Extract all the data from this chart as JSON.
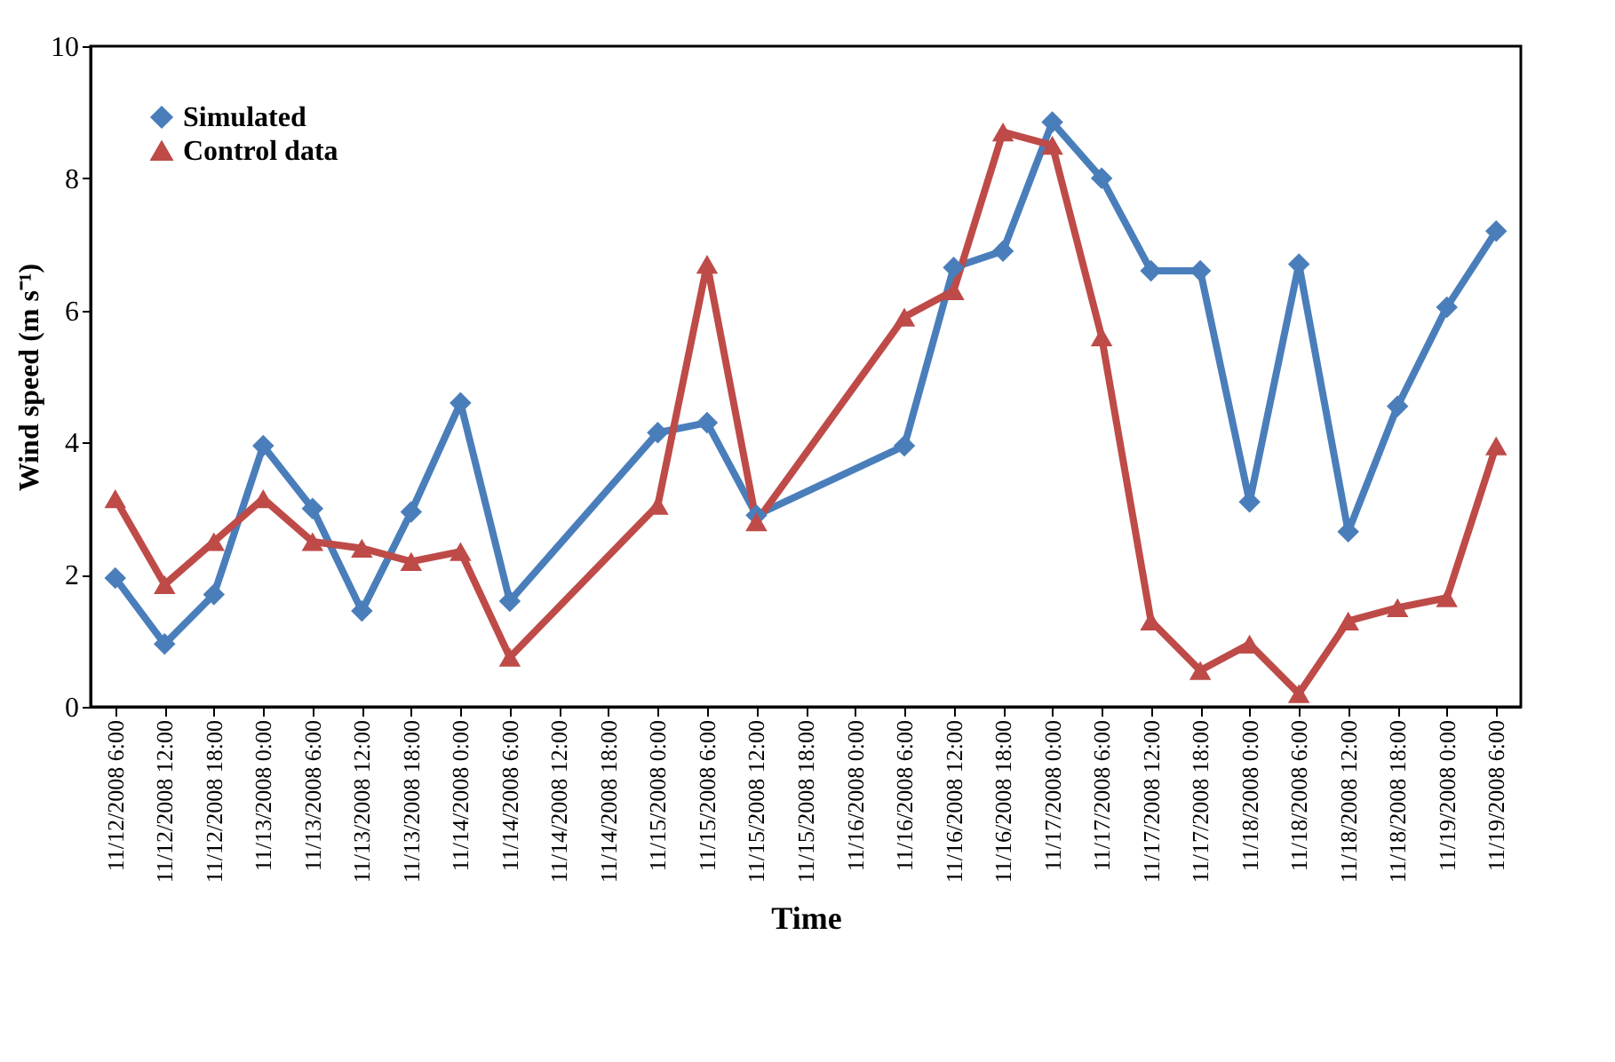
{
  "chart_data": {
    "type": "line",
    "xlabel": "Time",
    "ylabel": "Wind speed (m s⁻¹)",
    "categories": [
      "11/12/2008 6:00",
      "11/12/2008 12:00",
      "11/12/2008 18:00",
      "11/13/2008 0:00",
      "11/13/2008 6:00",
      "11/13/2008 12:00",
      "11/13/2008 18:00",
      "11/14/2008 0:00",
      "11/14/2008 6:00",
      "11/14/2008 12:00",
      "11/14/2008 18:00",
      "11/15/2008 0:00",
      "11/15/2008 6:00",
      "11/15/2008 12:00",
      "11/15/2008 18:00",
      "11/16/2008 0:00",
      "11/16/2008 6:00",
      "11/16/2008 12:00",
      "11/16/2008 18:00",
      "11/17/2008 0:00",
      "11/17/2008 6:00",
      "11/17/2008 12:00",
      "11/17/2008 18:00",
      "11/18/2008 0:00",
      "11/18/2008 6:00",
      "11/18/2008 12:00",
      "11/18/2008 18:00",
      "11/19/2008 0:00",
      "11/19/2008 6:00"
    ],
    "series": [
      {
        "name": "Simulated",
        "color": "#4a7ebb",
        "marker": "diamond",
        "values": [
          1.95,
          0.95,
          1.7,
          3.95,
          3.0,
          1.45,
          2.95,
          4.6,
          1.6,
          null,
          null,
          4.15,
          4.3,
          2.9,
          null,
          null,
          3.95,
          6.65,
          6.9,
          8.85,
          8.0,
          6.6,
          6.6,
          3.1,
          6.7,
          2.65,
          4.55,
          6.05,
          7.2
        ]
      },
      {
        "name": "Control data",
        "color": "#be4b48",
        "marker": "triangle",
        "values": [
          3.15,
          1.85,
          2.5,
          3.15,
          2.5,
          2.4,
          2.2,
          2.35,
          0.75,
          null,
          null,
          3.05,
          6.7,
          2.8,
          null,
          null,
          5.9,
          6.3,
          8.7,
          8.5,
          5.6,
          1.3,
          0.55,
          0.95,
          0.2,
          1.3,
          1.5,
          1.65,
          3.95
        ]
      }
    ],
    "ylim": [
      0,
      10
    ],
    "yticks": [
      0,
      2,
      4,
      6,
      8,
      10
    ],
    "grid": false,
    "legend": "top left",
    "line_style": "solid"
  }
}
